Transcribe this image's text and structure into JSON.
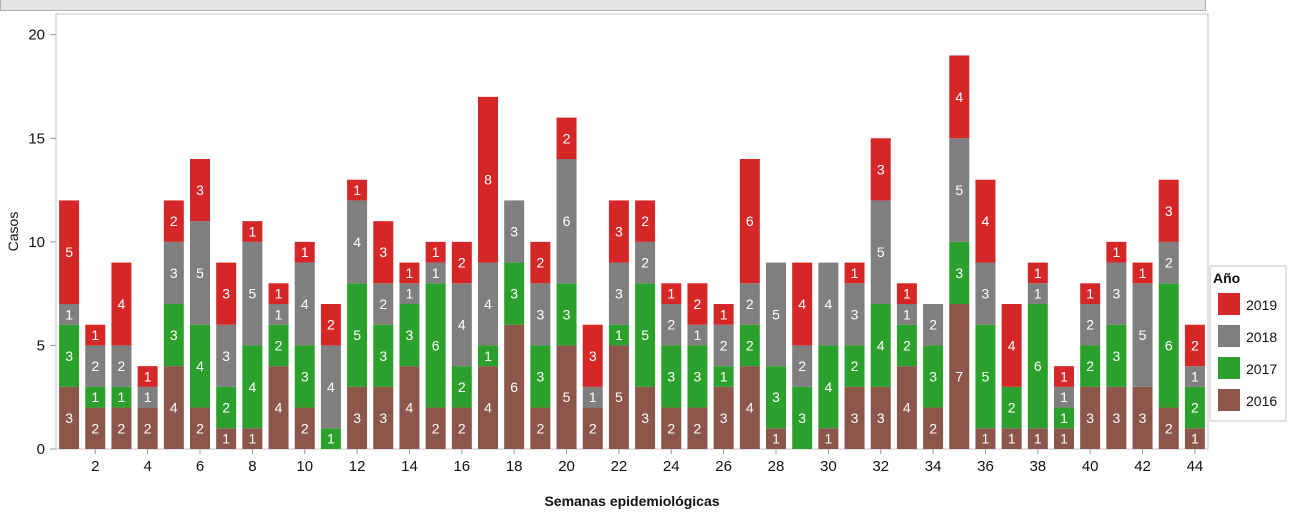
{
  "chart_data": {
    "type": "bar",
    "stacked": true,
    "xlabel": "Semanas epidemiológicas",
    "ylabel": "Casos",
    "ylim": [
      0,
      21
    ],
    "yticks": [
      0,
      5,
      10,
      15,
      20
    ],
    "xticks": [
      2,
      4,
      6,
      8,
      10,
      12,
      14,
      16,
      18,
      20,
      22,
      24,
      26,
      28,
      30,
      32,
      34,
      36,
      38,
      40,
      42,
      44
    ],
    "categories": [
      1,
      2,
      3,
      4,
      5,
      6,
      7,
      8,
      9,
      10,
      11,
      12,
      13,
      14,
      15,
      16,
      17,
      18,
      19,
      20,
      21,
      22,
      23,
      24,
      25,
      26,
      27,
      28,
      29,
      30,
      31,
      32,
      33,
      34,
      35,
      36,
      37,
      38,
      39,
      40,
      41,
      42,
      43,
      44
    ],
    "legend_title": "Año",
    "legend_position": "right",
    "series": [
      {
        "name": "2016",
        "color": "#8c564b",
        "values": [
          3,
          2,
          2,
          2,
          4,
          2,
          1,
          1,
          4,
          2,
          0,
          3,
          3,
          4,
          2,
          2,
          4,
          6,
          2,
          5,
          2,
          5,
          3,
          2,
          2,
          3,
          4,
          1,
          0,
          1,
          3,
          3,
          4,
          2,
          7,
          1,
          1,
          1,
          1,
          3,
          3,
          3,
          2,
          1
        ]
      },
      {
        "name": "2017",
        "color": "#2ca02c",
        "values": [
          3,
          1,
          1,
          0,
          3,
          4,
          2,
          4,
          2,
          3,
          1,
          5,
          3,
          3,
          6,
          2,
          1,
          3,
          3,
          3,
          0,
          1,
          5,
          3,
          3,
          1,
          2,
          3,
          3,
          4,
          2,
          4,
          2,
          3,
          3,
          5,
          2,
          6,
          1,
          2,
          3,
          0,
          6,
          2
        ]
      },
      {
        "name": "2018",
        "color": "#7f7f7f",
        "values": [
          1,
          2,
          2,
          1,
          3,
          5,
          3,
          5,
          1,
          4,
          4,
          4,
          2,
          1,
          1,
          4,
          4,
          3,
          3,
          6,
          1,
          3,
          2,
          2,
          1,
          2,
          2,
          5,
          2,
          4,
          3,
          5,
          1,
          2,
          5,
          3,
          0,
          1,
          1,
          2,
          3,
          5,
          2,
          1
        ]
      },
      {
        "name": "2019",
        "color": "#d62728",
        "values": [
          5,
          1,
          4,
          1,
          2,
          3,
          3,
          1,
          1,
          1,
          2,
          1,
          3,
          1,
          1,
          2,
          8,
          0,
          2,
          2,
          3,
          3,
          2,
          1,
          2,
          1,
          6,
          0,
          4,
          0,
          1,
          3,
          1,
          0,
          4,
          4,
          4,
          1,
          1,
          1,
          1,
          1,
          3,
          2
        ]
      }
    ]
  }
}
